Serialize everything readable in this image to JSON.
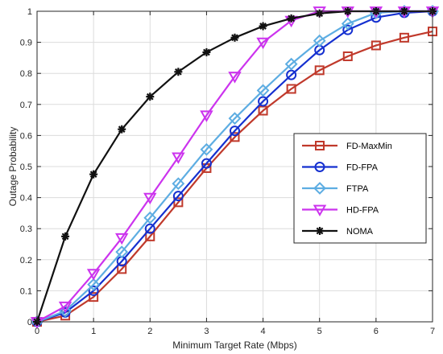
{
  "chart_data": {
    "type": "line",
    "title": "",
    "xlabel": "Minimum Target Rate (Mbps)",
    "ylabel": "Outage Probability",
    "xlim": [
      0,
      7
    ],
    "ylim": [
      0,
      1
    ],
    "xticks": [
      0,
      1,
      2,
      3,
      4,
      5,
      6,
      7
    ],
    "xtick_labels": [
      "0",
      "1",
      "2",
      "3",
      "4",
      "5",
      "6",
      "7"
    ],
    "yticks": [
      0,
      0.1,
      0.2,
      0.3,
      0.4,
      0.5,
      0.6,
      0.7,
      0.8,
      0.9,
      1
    ],
    "ytick_labels": [
      "0",
      "0.1",
      "0.2",
      "0.3",
      "0.4",
      "0.5",
      "0.6",
      "0.7",
      "0.8",
      "0.9",
      "1"
    ],
    "grid": true,
    "legend_position": "center-right",
    "x": [
      0,
      0.5,
      1,
      1.5,
      2,
      2.5,
      3,
      3.5,
      4,
      4.5,
      5,
      5.5,
      6,
      6.5,
      7
    ],
    "series": [
      {
        "name": "FD-MaxMin",
        "color": "#C0392B",
        "marker": "square",
        "values": [
          0,
          0.02,
          0.08,
          0.17,
          0.275,
          0.385,
          0.495,
          0.595,
          0.68,
          0.75,
          0.81,
          0.855,
          0.89,
          0.915,
          0.935
        ]
      },
      {
        "name": "FD-FPA",
        "color": "#1530D0",
        "marker": "circle",
        "values": [
          0,
          0.03,
          0.1,
          0.195,
          0.3,
          0.405,
          0.51,
          0.615,
          0.71,
          0.795,
          0.875,
          0.94,
          0.98,
          0.995,
          1.0
        ]
      },
      {
        "name": "FTPA",
        "color": "#5DADE2",
        "marker": "diamond",
        "values": [
          0,
          0.035,
          0.12,
          0.225,
          0.335,
          0.445,
          0.555,
          0.655,
          0.745,
          0.83,
          0.905,
          0.96,
          0.995,
          1.0,
          1.0
        ]
      },
      {
        "name": "HD-FPA",
        "color": "#CC33EE",
        "marker": "triangle-down",
        "values": [
          0,
          0.05,
          0.155,
          0.27,
          0.4,
          0.53,
          0.665,
          0.79,
          0.9,
          0.97,
          1.0,
          1.0,
          1.0,
          1.0,
          1.0
        ]
      },
      {
        "name": "NOMA",
        "color": "#111111",
        "marker": "star",
        "values": [
          0,
          0.275,
          0.475,
          0.62,
          0.725,
          0.805,
          0.868,
          0.915,
          0.952,
          0.977,
          0.993,
          1.0,
          1.0,
          1.0,
          1.0
        ]
      }
    ]
  }
}
